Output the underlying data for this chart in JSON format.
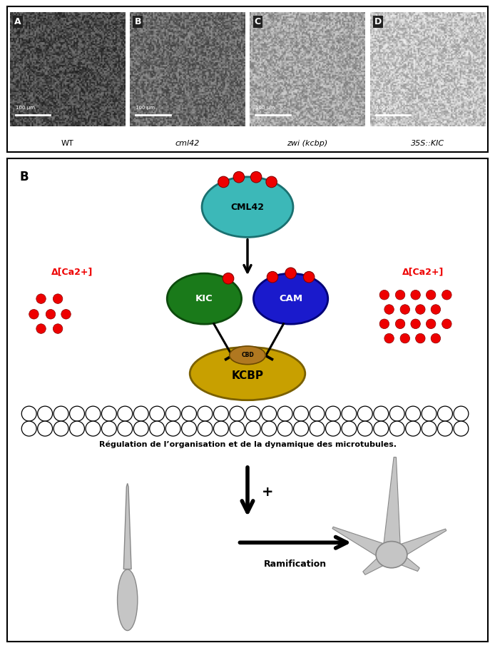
{
  "top_panel_labels": [
    "A",
    "B",
    "C",
    "D"
  ],
  "top_panel_captions": [
    "WT",
    "cml42",
    "zwi (kcbp)",
    "35S::KIC"
  ],
  "bg_color": "#ffffff",
  "cml42_color": "#3cb8b8",
  "kic_color": "#1a7a1a",
  "cam_color": "#1a1acc",
  "kcbp_color": "#c8a000",
  "cbd_color": "#b07820",
  "ca_dot_color": "#ee0000",
  "delta_ca_color": "#ee0000",
  "regulation_text": "Régulation de l’organisation et de la dynamique des microtubules.",
  "ramification_text": "Ramification",
  "plus_text": "+"
}
